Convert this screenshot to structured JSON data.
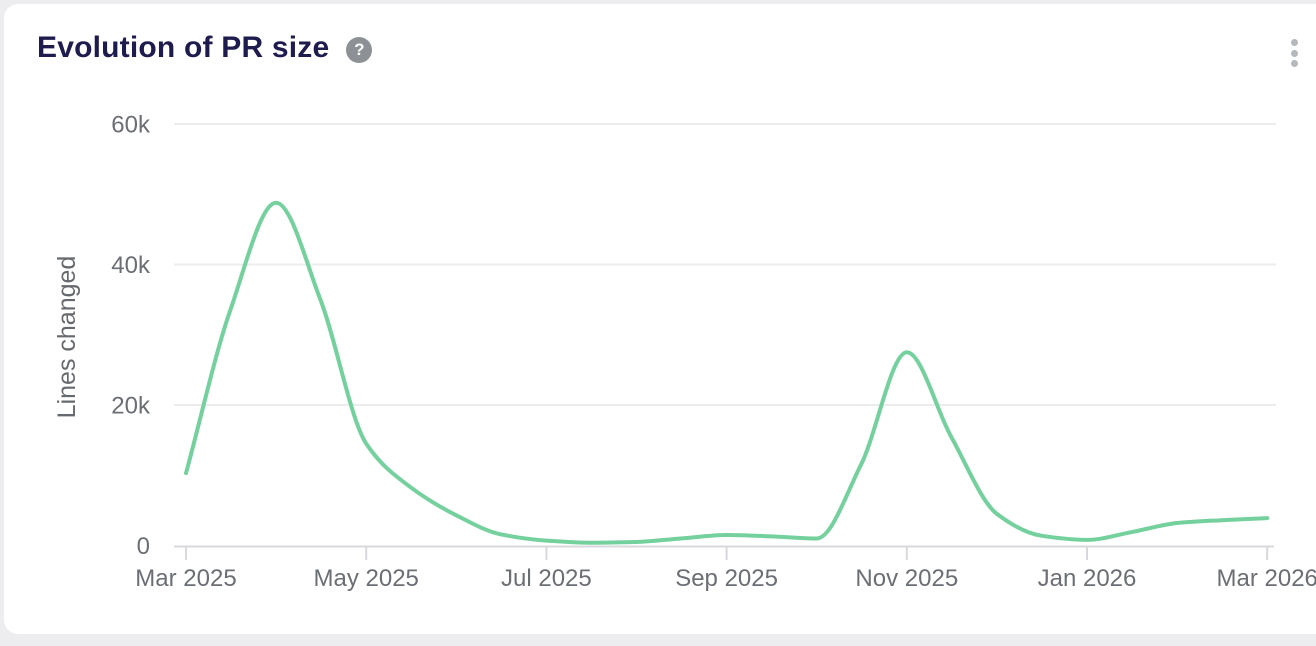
{
  "card": {
    "title": "Evolution of PR size"
  },
  "icons": {
    "help": {
      "name": "help-circle-icon",
      "glyph": "?"
    },
    "menu": {
      "name": "kebab-menu-icon"
    }
  },
  "chart_data": {
    "type": "line",
    "title": "Evolution of PR size",
    "xlabel": "",
    "ylabel": "Lines changed",
    "ylim": [
      0,
      60000
    ],
    "grid": "horizontal",
    "legend": "none",
    "curve": "monotone",
    "line_color": "#74d19d",
    "x_ticks": [
      {
        "label": "Mar 2025",
        "month": 0
      },
      {
        "label": "May 2025",
        "month": 2
      },
      {
        "label": "Jul 2025",
        "month": 4
      },
      {
        "label": "Sep 2025",
        "month": 6
      },
      {
        "label": "Nov 2025",
        "month": 8
      },
      {
        "label": "Jan 2026",
        "month": 10
      },
      {
        "label": "Mar 2026",
        "month": 12
      }
    ],
    "y_ticks": [
      {
        "label": "0",
        "value": 0
      },
      {
        "label": "20k",
        "value": 20000
      },
      {
        "label": "40k",
        "value": 40000
      },
      {
        "label": "60k",
        "value": 60000
      }
    ],
    "series": [
      {
        "name": "Lines changed",
        "points": [
          {
            "date": "2025-03-01",
            "value": 10300
          },
          {
            "date": "2025-03-16",
            "value": 33500
          },
          {
            "date": "2025-04-01",
            "value": 48800
          },
          {
            "date": "2025-04-16",
            "value": 35000
          },
          {
            "date": "2025-05-01",
            "value": 14500
          },
          {
            "date": "2025-05-16",
            "value": 8300
          },
          {
            "date": "2025-06-01",
            "value": 4300
          },
          {
            "date": "2025-06-16",
            "value": 1600
          },
          {
            "date": "2025-07-01",
            "value": 700
          },
          {
            "date": "2025-07-16",
            "value": 400
          },
          {
            "date": "2025-08-01",
            "value": 500
          },
          {
            "date": "2025-08-16",
            "value": 1000
          },
          {
            "date": "2025-09-01",
            "value": 1500
          },
          {
            "date": "2025-09-16",
            "value": 1300
          },
          {
            "date": "2025-10-01",
            "value": 1000
          },
          {
            "date": "2025-10-16",
            "value": 11500
          },
          {
            "date": "2025-11-01",
            "value": 27500
          },
          {
            "date": "2025-11-16",
            "value": 15500
          },
          {
            "date": "2025-12-01",
            "value": 4500
          },
          {
            "date": "2025-12-16",
            "value": 1400
          },
          {
            "date": "2026-01-01",
            "value": 800
          },
          {
            "date": "2026-01-16",
            "value": 1900
          },
          {
            "date": "2026-02-01",
            "value": 3200
          },
          {
            "date": "2026-02-16",
            "value": 3600
          },
          {
            "date": "2026-03-01",
            "value": 3900
          }
        ]
      }
    ]
  }
}
